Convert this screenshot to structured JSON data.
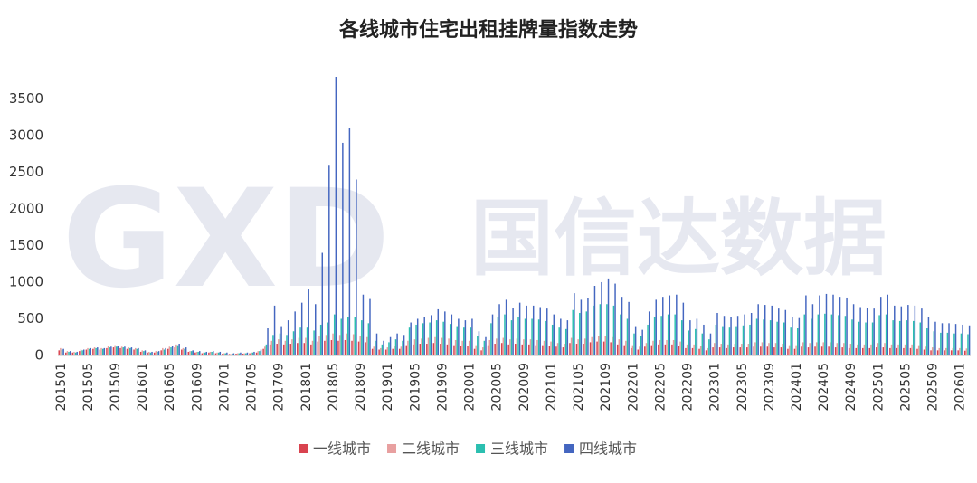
{
  "chart_data": {
    "type": "bar",
    "title": "各线城市住宅出租挂牌量指数走势",
    "watermark": "国信达数据",
    "watermark_logo": "GXD",
    "categories": [
      "201501",
      null,
      null,
      null,
      "201505",
      null,
      null,
      null,
      "201509",
      null,
      null,
      null,
      "201601",
      null,
      null,
      null,
      "201605",
      null,
      null,
      null,
      "201609",
      null,
      null,
      null,
      "201701",
      null,
      null,
      null,
      "201705",
      null,
      null,
      null,
      "201709",
      null,
      null,
      null,
      "201801",
      null,
      null,
      null,
      "201805",
      null,
      null,
      null,
      "201809",
      null,
      null,
      null,
      "201901",
      null,
      null,
      null,
      "201905",
      null,
      null,
      null,
      "201909",
      null,
      null,
      null,
      "202001",
      null,
      null,
      null,
      "202005",
      null,
      null,
      null,
      "202009",
      null,
      null,
      null,
      "202101",
      null,
      null,
      null,
      "202105",
      null,
      null,
      null,
      "202109",
      null,
      null,
      null,
      "202201",
      null,
      null,
      null,
      "202205",
      null,
      null,
      null,
      "202209",
      null,
      null,
      null,
      "202301",
      null,
      null,
      null,
      "202305",
      null,
      null,
      null,
      "202309",
      null,
      null,
      null,
      "202401",
      null,
      null,
      null,
      "202405",
      null,
      null,
      null,
      "202409",
      null,
      null,
      null,
      "202501",
      null,
      null,
      null,
      "202505",
      null,
      null,
      null,
      "202509",
      null,
      null,
      null,
      "202601",
      null
    ],
    "series": [
      {
        "name": "一线城市",
        "color": "#d9434f",
        "values": [
          70,
          40,
          40,
          60,
          80,
          90,
          80,
          100,
          110,
          100,
          90,
          80,
          50,
          40,
          40,
          70,
          90,
          110,
          80,
          50,
          40,
          30,
          40,
          30,
          25,
          20,
          25,
          25,
          30,
          40,
          90,
          150,
          160,
          150,
          160,
          170,
          170,
          150,
          190,
          200,
          210,
          200,
          210,
          200,
          190,
          180,
          90,
          80,
          80,
          90,
          90,
          140,
          150,
          160,
          160,
          170,
          160,
          150,
          140,
          130,
          130,
          90,
          70,
          140,
          160,
          170,
          150,
          160,
          150,
          150,
          140,
          140,
          130,
          120,
          110,
          170,
          160,
          160,
          180,
          190,
          190,
          180,
          150,
          140,
          100,
          80,
          120,
          140,
          150,
          150,
          150,
          130,
          100,
          100,
          90,
          70,
          110,
          110,
          100,
          110,
          110,
          110,
          120,
          120,
          120,
          110,
          110,
          90,
          90,
          120,
          110,
          120,
          120,
          120,
          110,
          110,
          100,
          100,
          100,
          100,
          110,
          110,
          100,
          100,
          100,
          100,
          90,
          80,
          70,
          70,
          70,
          70,
          70,
          65
        ]
      },
      {
        "name": "二线城市",
        "color": "#e8a0a0",
        "values": [
          100,
          60,
          50,
          80,
          100,
          110,
          100,
          130,
          140,
          120,
          110,
          100,
          70,
          50,
          60,
          100,
          120,
          150,
          100,
          60,
          50,
          40,
          50,
          40,
          30,
          20,
          30,
          30,
          40,
          60,
          120,
          200,
          220,
          200,
          220,
          240,
          240,
          200,
          260,
          280,
          300,
          280,
          300,
          290,
          270,
          250,
          120,
          100,
          110,
          130,
          120,
          200,
          220,
          230,
          240,
          250,
          240,
          230,
          210,
          200,
          200,
          140,
          110,
          210,
          230,
          240,
          220,
          230,
          220,
          220,
          210,
          200,
          190,
          170,
          160,
          240,
          220,
          230,
          250,
          260,
          260,
          250,
          220,
          200,
          140,
          120,
          170,
          200,
          210,
          210,
          210,
          190,
          150,
          150,
          130,
          100,
          170,
          160,
          150,
          160,
          160,
          160,
          180,
          180,
          170,
          170,
          160,
          140,
          140,
          180,
          170,
          180,
          180,
          180,
          170,
          170,
          160,
          150,
          150,
          150,
          170,
          170,
          150,
          150,
          150,
          150,
          140,
          120,
          110,
          100,
          100,
          100,
          100,
          95
        ]
      },
      {
        "name": "三线城市",
        "color": "#2bbfb0",
        "values": [
          80,
          50,
          40,
          70,
          90,
          100,
          90,
          110,
          120,
          110,
          100,
          90,
          60,
          40,
          50,
          80,
          110,
          140,
          90,
          60,
          50,
          40,
          50,
          40,
          30,
          25,
          30,
          30,
          40,
          60,
          150,
          280,
          300,
          280,
          330,
          380,
          380,
          340,
          420,
          450,
          560,
          500,
          520,
          520,
          480,
          440,
          200,
          150,
          180,
          220,
          200,
          380,
          420,
          440,
          450,
          480,
          460,
          430,
          400,
          380,
          380,
          260,
          200,
          440,
          520,
          560,
          480,
          520,
          500,
          500,
          490,
          470,
          420,
          380,
          360,
          620,
          580,
          600,
          680,
          700,
          700,
          680,
          560,
          500,
          300,
          260,
          420,
          520,
          540,
          560,
          560,
          480,
          340,
          360,
          300,
          220,
          420,
          400,
          380,
          400,
          410,
          420,
          500,
          490,
          480,
          460,
          450,
          380,
          370,
          560,
          500,
          560,
          570,
          560,
          550,
          540,
          490,
          460,
          450,
          450,
          550,
          560,
          480,
          470,
          480,
          470,
          450,
          370,
          330,
          310,
          310,
          300,
          300,
          290
        ]
      },
      {
        "name": "四线城市",
        "color": "#4466c0",
        "values": [
          90,
          60,
          50,
          80,
          100,
          110,
          100,
          120,
          130,
          120,
          110,
          100,
          70,
          50,
          60,
          100,
          130,
          160,
          110,
          70,
          60,
          50,
          60,
          50,
          40,
          30,
          40,
          40,
          50,
          80,
          370,
          680,
          400,
          480,
          600,
          720,
          900,
          700,
          1400,
          2600,
          3800,
          2900,
          3100,
          2400,
          830,
          770,
          300,
          200,
          250,
          300,
          280,
          450,
          500,
          530,
          550,
          630,
          600,
          560,
          500,
          480,
          500,
          330,
          250,
          560,
          700,
          760,
          650,
          720,
          680,
          680,
          660,
          640,
          560,
          500,
          480,
          850,
          760,
          780,
          950,
          1000,
          1050,
          980,
          800,
          730,
          400,
          350,
          600,
          760,
          800,
          820,
          830,
          720,
          480,
          500,
          420,
          300,
          580,
          540,
          520,
          540,
          560,
          580,
          700,
          690,
          680,
          640,
          620,
          520,
          510,
          820,
          700,
          820,
          840,
          830,
          800,
          790,
          700,
          660,
          650,
          640,
          800,
          830,
          680,
          670,
          690,
          680,
          640,
          520,
          460,
          440,
          440,
          430,
          420,
          410
        ]
      }
    ],
    "ylim": [
      0,
      3800
    ],
    "yticks": [
      0,
      500,
      1000,
      1500,
      2000,
      2500,
      3000,
      3500
    ],
    "grid": false,
    "legend": "bottom"
  }
}
